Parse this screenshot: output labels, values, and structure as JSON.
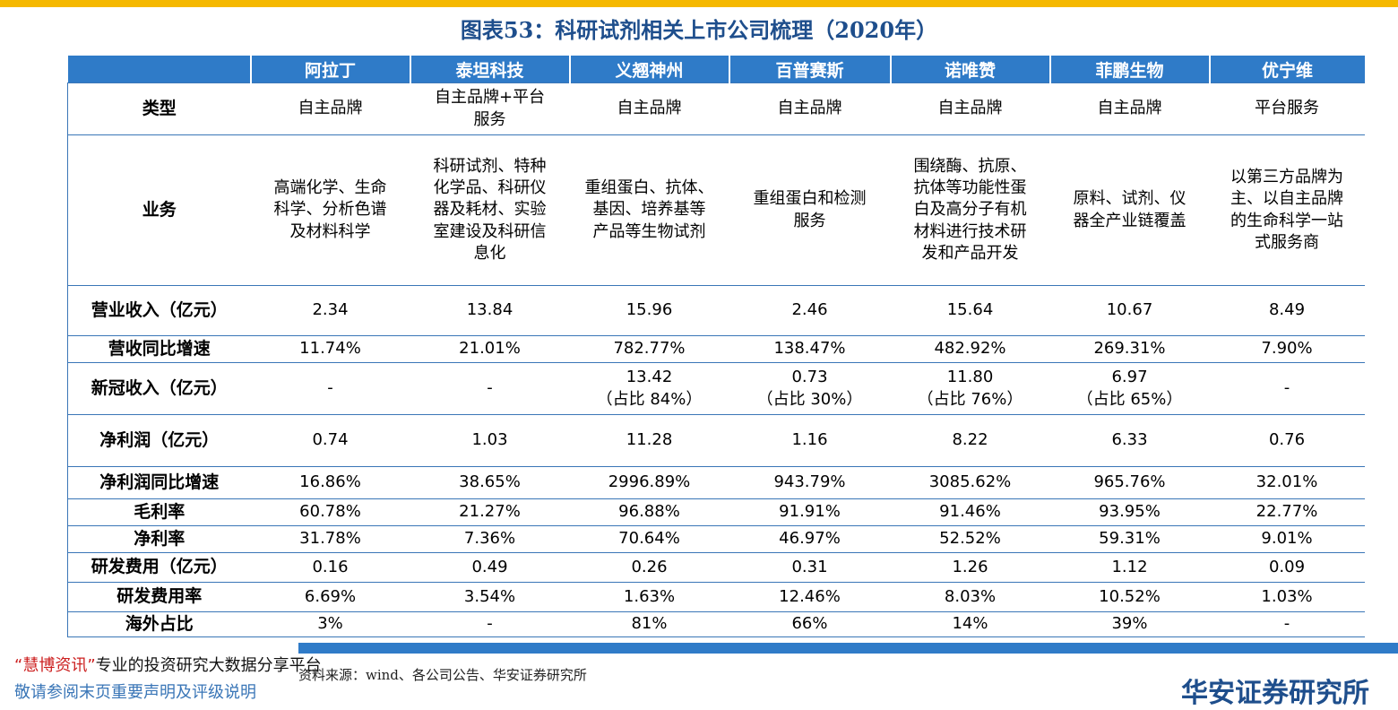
{
  "title": "图表53：科研试剂相关上市公司梳理（2020年）",
  "columns": [
    "",
    "阿拉丁",
    "泰坦科技",
    "义翘神州",
    "百普赛斯",
    "诺唯赞",
    "菲鹏生物",
    "优宁维"
  ],
  "rows": [
    {
      "label": "类型",
      "cells": [
        "自主品牌",
        "自主品牌+平台\n服务",
        "自主品牌",
        "自主品牌",
        "自主品牌",
        "自主品牌",
        "平台服务"
      ]
    },
    {
      "label": "业务",
      "cells": [
        "高端化学、生命\n科学、分析色谱\n及材料科学",
        "科研试剂、特种\n化学品、科研仪\n器及耗材、实验\n室建设及科研信\n息化",
        "重组蛋白、抗体、\n基因、培养基等\n产品等生物试剂",
        "重组蛋白和检测\n服务",
        "围绕酶、抗原、\n抗体等功能性蛋\n白及高分子有机\n材料进行技术研\n发和产品开发",
        "原料、试剂、仪\n器全产业链覆盖",
        "以第三方品牌为\n主、以自主品牌\n的生命科学一站\n式服务商"
      ]
    },
    {
      "label": "营业收入（亿元）",
      "cells": [
        "2.34",
        "13.84",
        "15.96",
        "2.46",
        "15.64",
        "10.67",
        "8.49"
      ]
    },
    {
      "label": "营收同比增速",
      "cells": [
        "11.74%",
        "21.01%",
        "782.77%",
        "138.47%",
        "482.92%",
        "269.31%",
        "7.90%"
      ]
    },
    {
      "label": "新冠收入（亿元）",
      "cells": [
        "-",
        "-",
        "13.42\n（占比 84%）",
        "0.73\n（占比 30%）",
        "11.80\n（占比 76%）",
        "6.97\n（占比 65%）",
        "-"
      ]
    },
    {
      "label": "净利润（亿元）",
      "cells": [
        "0.74",
        "1.03",
        "11.28",
        "1.16",
        "8.22",
        "6.33",
        "0.76"
      ]
    },
    {
      "label": "净利润同比增速",
      "cells": [
        "16.86%",
        "38.65%",
        "2996.89%",
        "943.79%",
        "3085.62%",
        "965.76%",
        "32.01%"
      ]
    },
    {
      "label": "毛利率",
      "cells": [
        "60.78%",
        "21.27%",
        "96.88%",
        "91.91%",
        "91.46%",
        "93.95%",
        "22.77%"
      ]
    },
    {
      "label": "净利率",
      "cells": [
        "31.78%",
        "7.36%",
        "70.64%",
        "46.97%",
        "52.52%",
        "59.31%",
        "9.01%"
      ]
    },
    {
      "label": "研发费用（亿元）",
      "cells": [
        "0.16",
        "0.49",
        "0.26",
        "0.31",
        "1.26",
        "1.12",
        "0.09"
      ]
    },
    {
      "label": "研发费用率",
      "cells": [
        "6.69%",
        "3.54%",
        "1.63%",
        "12.46%",
        "8.03%",
        "10.52%",
        "1.03%"
      ]
    },
    {
      "label": "海外占比",
      "cells": [
        "3%",
        "-",
        "81%",
        "66%",
        "14%",
        "39%",
        "-"
      ]
    }
  ],
  "source": "资料来源：wind、各公司公告、华安证券研究所",
  "promo": {
    "brand": "“慧博资讯”",
    "text": "专业的投资研究大数据分享平台"
  },
  "disclaimer": "敬请参阅末页重要声明及评级说明",
  "footer_logo": "华安证券研究所"
}
